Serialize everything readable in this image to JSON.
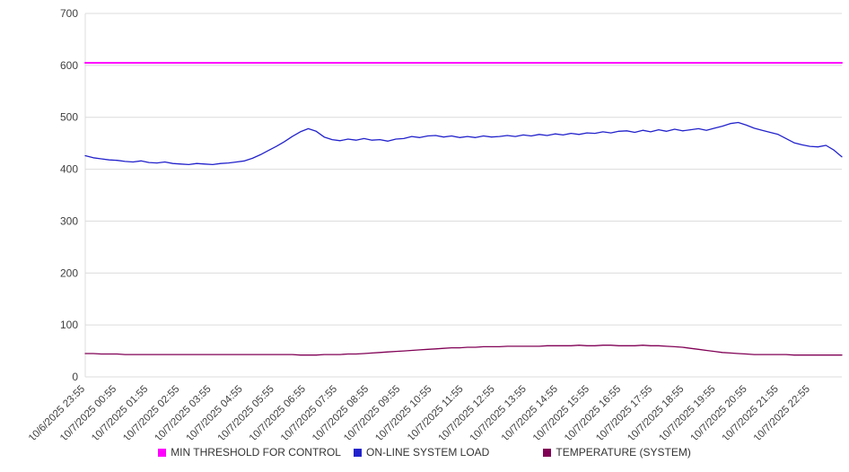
{
  "chart_data": {
    "type": "line",
    "title": "",
    "xlabel": "",
    "ylabel": "",
    "ylim": [
      0,
      700
    ],
    "yticks": [
      0,
      100,
      200,
      300,
      400,
      500,
      600,
      700
    ],
    "grid": "horizontal",
    "legend_position": "bottom",
    "axis_text_color": "#404040",
    "grid_color": "#dcdcdc",
    "x_labels": [
      "10/6/2025 23:55",
      "10/7/2025 00:55",
      "10/7/2025 01:55",
      "10/7/2025 02:55",
      "10/7/2025 03:55",
      "10/7/2025 04:55",
      "10/7/2025 05:55",
      "10/7/2025 06:55",
      "10/7/2025 07:55",
      "10/7/2025 08:55",
      "10/7/2025 09:55",
      "10/7/2025 10:55",
      "10/7/2025 11:55",
      "10/7/2025 12:55",
      "10/7/2025 13:55",
      "10/7/2025 14:55",
      "10/7/2025 15:55",
      "10/7/2025 16:55",
      "10/7/2025 17:55",
      "10/7/2025 18:55",
      "10/7/2025 19:55",
      "10/7/2025 20:55",
      "10/7/2025 21:55",
      "10/7/2025 22:55"
    ],
    "series": [
      {
        "name": "MIN THRESHOLD FOR CONTROL",
        "color": "#ff00ff",
        "width": 2,
        "values": [
          605,
          605
        ]
      },
      {
        "name": "ON-LINE SYSTEM LOAD",
        "color": "#2222cc",
        "width": 1.3,
        "values": [
          426,
          422,
          420,
          418,
          417,
          415,
          414,
          416,
          413,
          412,
          414,
          411,
          410,
          409,
          411,
          410,
          409,
          411,
          412,
          414,
          416,
          421,
          428,
          436,
          444,
          453,
          463,
          472,
          478,
          473,
          462,
          457,
          455,
          458,
          456,
          459,
          456,
          457,
          454,
          458,
          459,
          463,
          461,
          464,
          465,
          462,
          464,
          461,
          463,
          461,
          464,
          462,
          463,
          465,
          463,
          466,
          464,
          467,
          465,
          468,
          466,
          469,
          467,
          470,
          469,
          472,
          470,
          473,
          474,
          471,
          475,
          472,
          476,
          473,
          477,
          474,
          476,
          478,
          475,
          479,
          483,
          488,
          490,
          485,
          479,
          475,
          471,
          467,
          459,
          451,
          447,
          444,
          443,
          446,
          437,
          424
        ]
      },
      {
        "name": "TEMPERATURE (SYSTEM)",
        "color": "#800055",
        "width": 1.3,
        "values": [
          45,
          45,
          44,
          44,
          44,
          43,
          43,
          43,
          43,
          43,
          43,
          43,
          43,
          43,
          43,
          43,
          43,
          43,
          43,
          43,
          43,
          43,
          43,
          43,
          43,
          43,
          43,
          42,
          42,
          42,
          43,
          43,
          43,
          44,
          44,
          45,
          46,
          47,
          48,
          49,
          50,
          51,
          52,
          53,
          54,
          55,
          56,
          56,
          57,
          57,
          58,
          58,
          58,
          59,
          59,
          59,
          59,
          59,
          60,
          60,
          60,
          60,
          61,
          60,
          60,
          61,
          61,
          60,
          60,
          60,
          61,
          60,
          60,
          59,
          58,
          57,
          55,
          53,
          51,
          49,
          47,
          46,
          45,
          44,
          43,
          43,
          43,
          43,
          43,
          42,
          42,
          42,
          42,
          42,
          42,
          42
        ]
      }
    ]
  }
}
